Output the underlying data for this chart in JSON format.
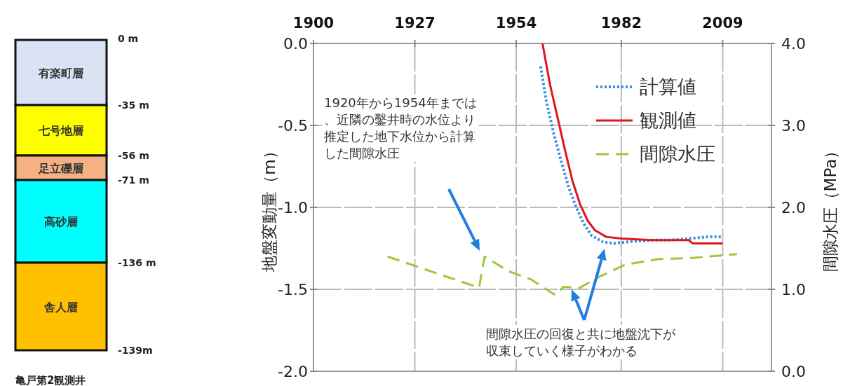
{
  "chart_data": [
    {
      "type": "other",
      "title": "亀戸第2観測井",
      "categories": [
        "有楽町層",
        "七号地層",
        "足立礫層",
        "高砂層",
        "舎人層"
      ],
      "colors": [
        "#dae3f3",
        "#ffff00",
        "#f4b183",
        "#00ffff",
        "#ffc000"
      ],
      "annotations": [
        "0 m",
        "-35 m",
        "-56 m",
        "-71 m",
        "-136 m",
        "-139m"
      ]
    },
    {
      "type": "line",
      "ylabel": "地盤変動量（m）",
      "y2label": "間隙水圧（MPa）",
      "xlim": [
        1900,
        2022
      ],
      "xticks": [
        1900,
        1927,
        1954,
        1982,
        2009
      ],
      "ylim": [
        -2.0,
        0.0
      ],
      "yticks": [
        {
          "value": 0,
          "label": "0.0"
        },
        {
          "value": -0.5,
          "label": "-0.5"
        },
        {
          "value": -1.0,
          "label": "-1.0"
        },
        {
          "value": -1.5,
          "label": "-1.5"
        },
        {
          "value": -2.0,
          "label": "-2.0"
        }
      ],
      "y2lim": [
        0.0,
        4.0
      ],
      "y2ticks": [
        {
          "value": 4,
          "label": "4.0"
        },
        {
          "value": 3,
          "label": "3.0"
        },
        {
          "value": 2,
          "label": "2.0"
        },
        {
          "value": 1,
          "label": "1.0"
        },
        {
          "value": 0,
          "label": "0.0"
        }
      ],
      "grid": true,
      "legend": "top right",
      "series": [
        {
          "name": "計算値",
          "color": "#3a8fe0",
          "line_style": "dotted",
          "x": [
            1960.5,
            1962,
            1964,
            1966,
            1968,
            1970,
            1972,
            1974,
            1977,
            1980,
            1984,
            1990,
            1995,
            2000,
            2005,
            2009
          ],
          "values": [
            -0.14,
            -0.35,
            -0.55,
            -0.72,
            -0.88,
            -1.0,
            -1.1,
            -1.17,
            -1.21,
            -1.22,
            -1.21,
            -1.2,
            -1.2,
            -1.19,
            -1.18,
            -1.18
          ]
        },
        {
          "name": "観測値",
          "color": "#e0141c",
          "line_style": "solid",
          "x": [
            1961,
            1963,
            1965,
            1967,
            1969,
            1971,
            1973,
            1975,
            1978,
            1982,
            1990,
            2000,
            2001,
            2009
          ],
          "values": [
            0.0,
            -0.25,
            -0.45,
            -0.65,
            -0.84,
            -0.98,
            -1.08,
            -1.14,
            -1.18,
            -1.19,
            -1.2,
            -1.2,
            -1.22,
            -1.22
          ]
        },
        {
          "name": "間隙水圧",
          "color": "#9dc83c",
          "line_style": "dashed",
          "axis": "y2",
          "x": [
            1919.7,
            1944.1,
            1945.6,
            1952,
            1958,
            1964.4,
            1966.6,
            1971,
            1976,
            1983,
            1992,
            2000,
            2012.8
          ],
          "values": [
            1.4,
            1.02,
            1.4,
            1.22,
            1.12,
            0.93,
            1.03,
            1.02,
            1.15,
            1.3,
            1.37,
            1.38,
            1.43
          ]
        }
      ],
      "annotations": [
        "1920年から1954年までは、近隣の鑿井時の水位より推定した地下水位から計算した間隙水圧",
        "間隙水圧の回復と共に地盤沈下が収束していく様子がわかる"
      ]
    }
  ]
}
